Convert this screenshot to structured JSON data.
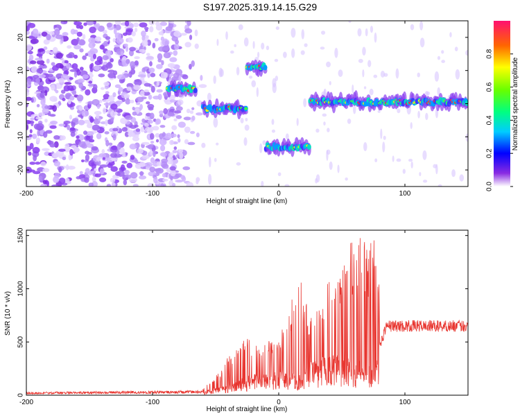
{
  "title": "S197.2025.319.14.15.G29",
  "chart_data": [
    {
      "type": "heatmap",
      "xlabel": "Height of straight line (km)",
      "ylabel": "Frequency (Hz)",
      "xlim": [
        -200,
        150
      ],
      "ylim": [
        -25,
        25
      ],
      "x_ticks": [
        -200,
        -100,
        0,
        100
      ],
      "x_tick_labels": [
        "-200",
        "-100",
        "0",
        "100"
      ],
      "y_ticks": [
        -20,
        -10,
        0,
        10,
        20
      ],
      "y_tick_labels": [
        "-20",
        "-10",
        "0",
        "10",
        "20"
      ],
      "colorbar": {
        "label": "Normalized spectral amplitude",
        "range": [
          0,
          1
        ],
        "ticks": [
          0.0,
          0.2,
          0.4,
          0.6,
          0.8
        ],
        "tick_labels": [
          "0.0",
          "0.2",
          "0.4",
          "0.6",
          "0.8"
        ]
      },
      "noise_region_x": [
        -200,
        -55
      ],
      "ridge": [
        {
          "x": [
            -88,
            -65
          ],
          "freq": 4.5
        },
        {
          "x": [
            -60,
            -25
          ],
          "freq": -1.5
        },
        {
          "x": [
            -25,
            -10
          ],
          "freq": 11
        },
        {
          "x": [
            -10,
            25
          ],
          "freq": -13
        },
        {
          "x": [
            25,
            150
          ],
          "freq": 0.5
        }
      ]
    },
    {
      "type": "line",
      "xlabel": "Height of straight line (km)",
      "ylabel": "SNR (10 * v/v)",
      "xlim": [
        -200,
        150
      ],
      "ylim": [
        0,
        1550
      ],
      "x_ticks": [
        -200,
        -100,
        0,
        100
      ],
      "x_tick_labels": [
        "-200",
        "-100",
        "0",
        "100"
      ],
      "y_ticks": [
        0,
        500,
        1000,
        1500
      ],
      "y_tick_labels": [
        "0",
        "500",
        "1000",
        "1500"
      ],
      "color": "#e8352f",
      "envelope": {
        "x": [
          -200,
          -60,
          -45,
          -30,
          -15,
          0,
          15,
          25,
          40,
          55,
          65,
          75,
          85,
          100,
          150
        ],
        "base": [
          20,
          30,
          80,
          150,
          200,
          250,
          180,
          280,
          350,
          400,
          300,
          250,
          650,
          650,
          650
        ],
        "peak": [
          50,
          60,
          250,
          620,
          500,
          520,
          1200,
          800,
          1100,
          1400,
          1550,
          1500,
          700,
          720,
          720
        ]
      }
    }
  ]
}
